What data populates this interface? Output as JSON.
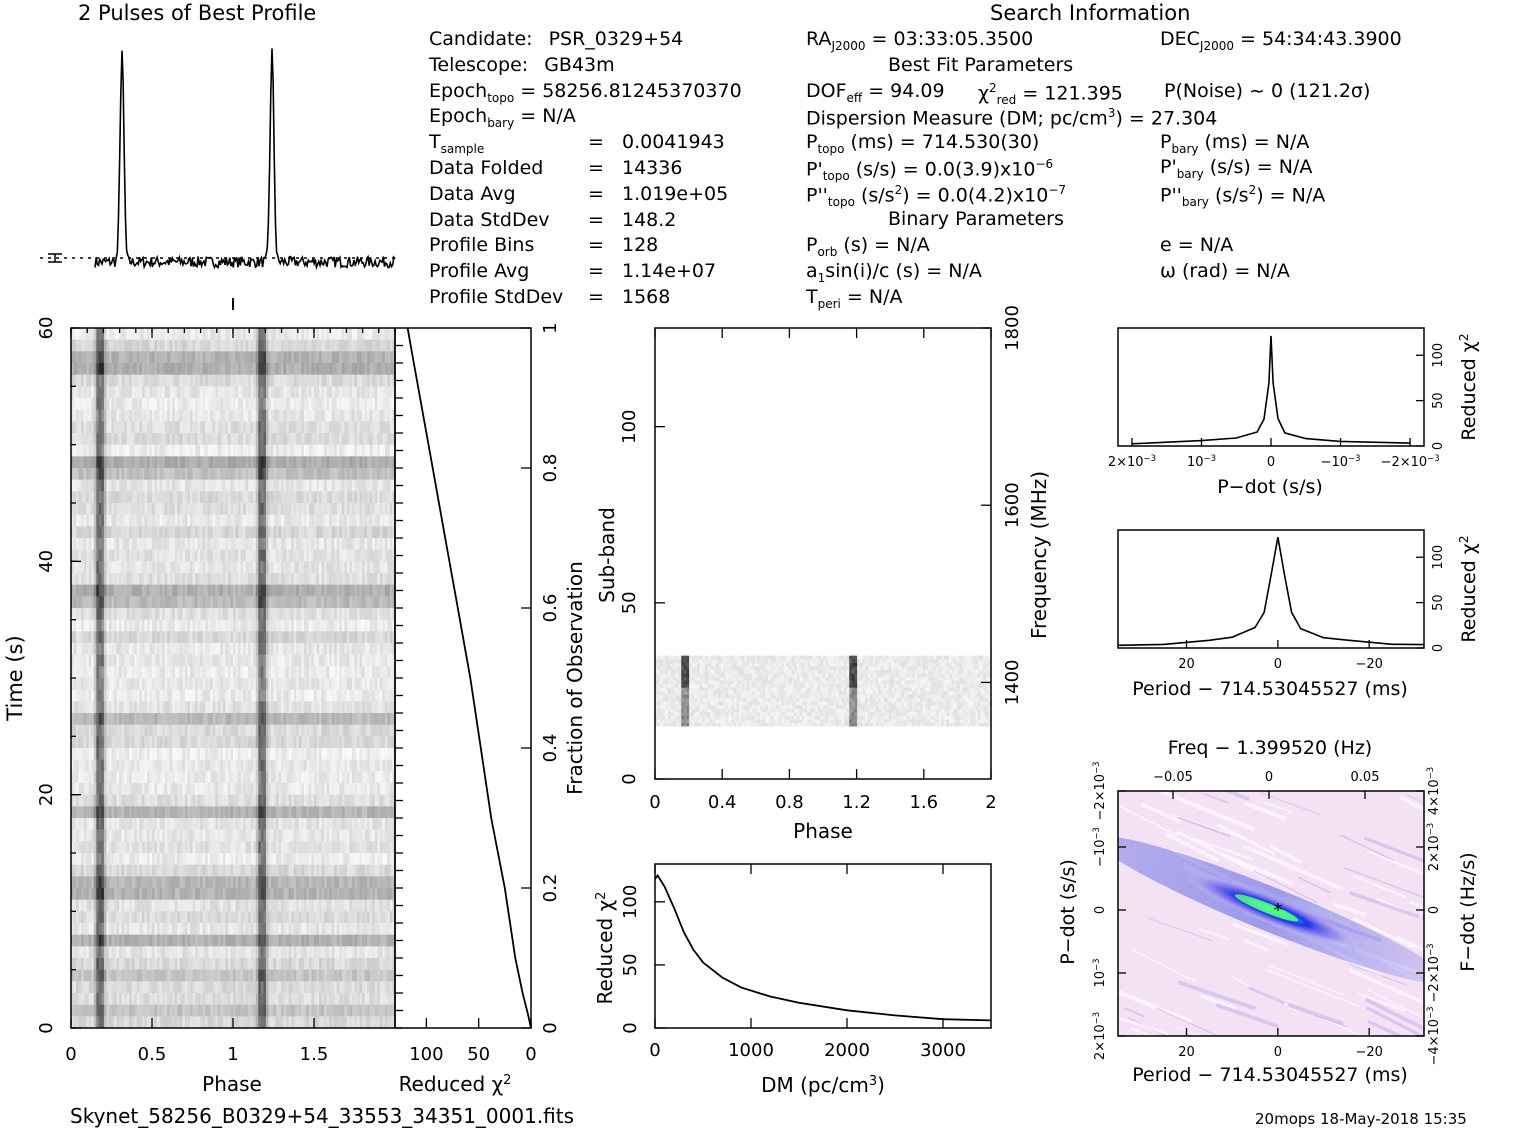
{
  "header": {
    "profile_title": "2 Pulses of Best Profile",
    "search_title": "Search Information",
    "best_fit_title": "Best Fit Parameters",
    "binary_title": "Binary Parameters"
  },
  "info": {
    "col1": [
      {
        "k": "Candidate:",
        "v": "PSR_0329+54"
      },
      {
        "k": "Telescope:",
        "v": "GB43m"
      },
      {
        "k": "Epoch",
        "sub": "topo",
        "v": "= 58256.81245370370"
      },
      {
        "k": "Epoch",
        "sub": "bary",
        "v": "= N/A"
      },
      {
        "k": "T",
        "sub": "sample",
        "eq": "=",
        "v": "0.0041943"
      },
      {
        "k": "Data Folded",
        "eq": "=",
        "v": "14336"
      },
      {
        "k": "Data Avg",
        "eq": "=",
        "v": "1.019e+05"
      },
      {
        "k": "Data StdDev",
        "eq": "=",
        "v": "148.2"
      },
      {
        "k": "Profile Bins",
        "eq": "=",
        "v": "128"
      },
      {
        "k": "Profile Avg",
        "eq": "=",
        "v": "1.14e+07"
      },
      {
        "k": "Profile StdDev",
        "eq": "=",
        "v": "1568"
      }
    ],
    "ra": {
      "k": "RA",
      "sub": "J2000",
      "v": " = 03:33:05.3500"
    },
    "dec": {
      "k": "DEC",
      "sub": "J2000",
      "v": " = 54:34:43.3900"
    },
    "dof": {
      "k": "DOF",
      "sub": "eff",
      "v": " = 94.09"
    },
    "chi": {
      "k": "χ",
      "sup": "2",
      "sub": "red",
      "v": " = 121.395"
    },
    "pnoise": "P(Noise) ~ 0   (121.2σ)",
    "dm": "Dispersion Measure (DM; pc/cm",
    "dm_val": ") = 27.304",
    "ptopo": {
      "k": "P",
      "sub": "topo",
      "v": " (ms) =  714.530(30)"
    },
    "pbary": {
      "k": "P",
      "sub": "bary",
      "v": " (ms) = N/A"
    },
    "pdtopo": {
      "k": "P'",
      "sub": "topo",
      "v": " (s/s) = 0.0(3.9)x10",
      "sup": "−6"
    },
    "pdbary": {
      "k": "P'",
      "sub": "bary",
      "v": " (s/s) = N/A"
    },
    "pddtopo": {
      "k": "P''",
      "sub": "topo",
      "v": " (s/s",
      "sup": "2",
      "v2": ") = 0.0(4.2)x10",
      "sup2": "−7"
    },
    "pddbary": {
      "k": "P''",
      "sub": "bary",
      "v": " (s/s",
      "sup": "2",
      "v2": ") = N/A"
    },
    "porb": {
      "k": "P",
      "sub": "orb",
      "v": " (s) = N/A"
    },
    "ecc": "e = N/A",
    "a1": {
      "k": "a",
      "sub": "1",
      "v": "sin(i)/c (s) = N/A"
    },
    "omega": "ω (rad) = N/A",
    "tperi": {
      "k": "T",
      "sub": "peri",
      "v": " = N/A"
    }
  },
  "footer": {
    "filename": "Skynet_58256_B0329+54_33553_34351_0001.fits",
    "stamp": "20mops 18-May-2018 15:35"
  },
  "chart_data": [
    {
      "id": "profile",
      "type": "line",
      "title": "2 Pulses of Best Profile",
      "x": [
        0,
        0.06,
        0.12,
        0.16,
        0.18,
        0.2,
        0.24,
        0.3,
        0.5,
        0.7,
        1.0,
        1.06,
        1.12,
        1.16,
        1.18,
        1.2,
        1.24,
        1.3,
        1.5,
        1.7,
        2.0
      ],
      "y": [
        0.02,
        0.01,
        0.03,
        0.55,
        1.0,
        0.6,
        0.04,
        0.0,
        0.02,
        0.03,
        0.02,
        0.01,
        0.03,
        0.55,
        1.0,
        0.6,
        0.04,
        0.0,
        0.02,
        0.03,
        0.02
      ],
      "xlim": [
        0,
        2
      ],
      "mean_level": 0.06
    },
    {
      "id": "time_phase",
      "type": "heatmap",
      "xlabel": "Phase",
      "ylabel": "Time (s)",
      "xticks": [
        "0",
        "0.5",
        "1",
        "1.5"
      ],
      "yticks": [
        "0",
        "20",
        "40",
        "60"
      ],
      "xlim": [
        0,
        2
      ],
      "ylim": [
        0,
        60
      ],
      "pulse_phases": [
        0.18,
        1.18
      ]
    },
    {
      "id": "time_chi",
      "type": "line",
      "xlabel": "Reduced χ",
      "xlabel_sup": "2",
      "ylabel": "Fraction of Observation",
      "xticks": [
        "100",
        "50",
        "0"
      ],
      "yticks": [
        "0",
        "0.2",
        "0.4",
        "0.6",
        "0.8",
        "1"
      ],
      "frac": [
        0,
        0.02,
        0.05,
        0.1,
        0.2,
        0.3,
        0.4,
        0.5,
        0.6,
        0.7,
        0.8,
        0.9,
        0.95,
        1.0
      ],
      "chi": [
        0,
        3,
        8,
        15,
        25,
        38,
        48,
        58,
        70,
        82,
        94,
        106,
        112,
        118
      ],
      "xlim": [
        130,
        0
      ],
      "ylim": [
        0,
        1
      ]
    },
    {
      "id": "subband",
      "type": "heatmap",
      "xlabel": "Phase",
      "ylabel": "Sub-band",
      "ylabel_right": "Frequency (MHz)",
      "xticks": [
        "0",
        "0.4",
        "0.8",
        "1.2",
        "1.6",
        "2"
      ],
      "yticks": [
        "0",
        "50",
        "100"
      ],
      "yticks_right": [
        "1400",
        "1600",
        "1800"
      ],
      "xlim": [
        0,
        2
      ],
      "ylim": [
        0,
        128
      ],
      "freq_lim": [
        1291,
        1800
      ],
      "band_range": [
        15,
        35
      ],
      "pulse_phases": [
        0.18,
        1.18
      ]
    },
    {
      "id": "dm_chi",
      "type": "line",
      "xlabel": "DM (pc/cm",
      "xlabel_sup": "3",
      "xlabel_end": ")",
      "ylabel": "Reduced χ",
      "ylabel_sup": "2",
      "xticks": [
        "0",
        "1000",
        "2000",
        "3000"
      ],
      "yticks": [
        "0",
        "50",
        "100"
      ],
      "x": [
        0,
        27,
        100,
        200,
        300,
        400,
        500,
        700,
        900,
        1200,
        1500,
        2000,
        2500,
        3000,
        3500
      ],
      "y": [
        118,
        121,
        112,
        95,
        76,
        62,
        52,
        40,
        32,
        25,
        20,
        14,
        10,
        7,
        6
      ],
      "xlim": [
        0,
        3500
      ],
      "ylim": [
        0,
        130
      ]
    },
    {
      "id": "pdot_chi",
      "type": "line",
      "xlabel": "P−dot (s/s)",
      "ylabel": "Reduced χ",
      "ylabel_sup": "2",
      "xticks": [
        "2×10",
        "10",
        "0",
        "−10",
        "−2×10"
      ],
      "xtick_sup": "−3",
      "yticks": [
        "0",
        "50",
        "100"
      ],
      "x": [
        0.002,
        0.001,
        0.0005,
        0.0002,
        0.0001,
        3e-05,
        0,
        -3e-05,
        -0.0001,
        -0.0002,
        -0.0005,
        -0.001,
        -0.002
      ],
      "y": [
        3,
        5,
        8,
        15,
        30,
        70,
        121,
        70,
        30,
        15,
        8,
        5,
        3
      ],
      "xlim": [
        0.0022,
        -0.0022
      ],
      "ylim": [
        0,
        130
      ]
    },
    {
      "id": "period_chi",
      "type": "line",
      "xlabel": "Period − 714.53045527 (ms)",
      "ylabel": "Reduced χ",
      "ylabel_sup": "2",
      "xticks": [
        "20",
        "0",
        "−20"
      ],
      "yticks": [
        "0",
        "50",
        "100"
      ],
      "x": [
        35,
        25,
        15,
        10,
        5,
        3,
        1.5,
        0,
        -1.5,
        -3,
        -5,
        -10,
        -15,
        -25,
        -32
      ],
      "y": [
        3,
        5,
        8,
        12,
        22,
        40,
        80,
        121,
        80,
        40,
        22,
        12,
        8,
        5,
        3
      ],
      "xlim": [
        35,
        -32
      ],
      "ylim": [
        0,
        130
      ]
    },
    {
      "id": "ppdot",
      "type": "heatmap",
      "title": "Freq − 1.399520 (Hz)",
      "xlabel": "Period − 714.53045527 (ms)",
      "ylabel": "P−dot (s/s)",
      "ylabel_right": "F−dot (Hz/s)",
      "xticks": [
        "20",
        "0",
        "−20"
      ],
      "xticks_top": [
        "−0.05",
        "0",
        "0.05"
      ],
      "yticks": [
        "2×10",
        "10",
        "0",
        "−10",
        "−2×10"
      ],
      "yticks_right": [
        "−4×10",
        "−2×10",
        "0",
        "2×10",
        "4×10"
      ],
      "ytick_sup": "−3"
    }
  ]
}
